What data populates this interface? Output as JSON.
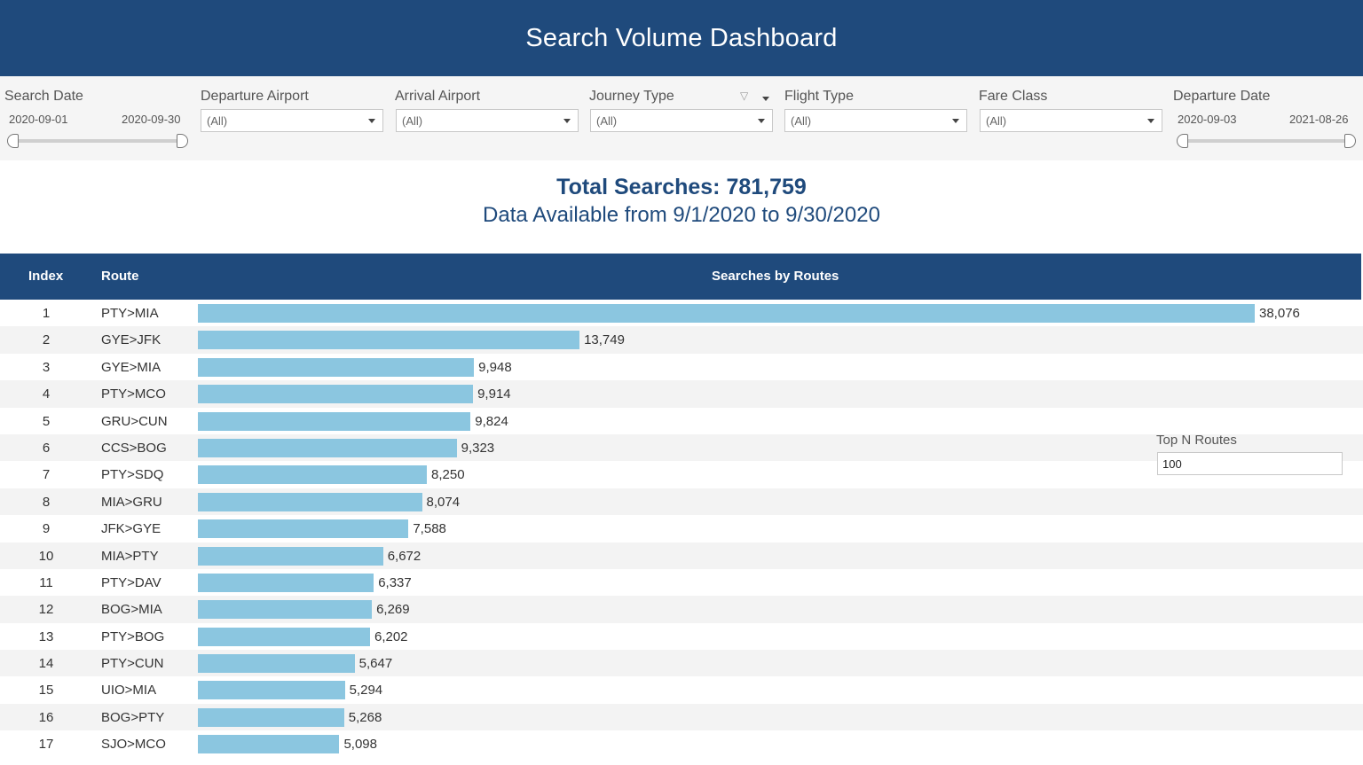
{
  "header": {
    "title": "Search Volume Dashboard"
  },
  "filters": {
    "search_date": {
      "label": "Search Date",
      "start": "2020-09-01",
      "end": "2020-09-30"
    },
    "departure_airport": {
      "label": "Departure Airport",
      "value": "(All)"
    },
    "arrival_airport": {
      "label": "Arrival Airport",
      "value": "(All)"
    },
    "journey_type": {
      "label": "Journey Type",
      "value": "(All)"
    },
    "flight_type": {
      "label": "Flight Type",
      "value": "(All)"
    },
    "fare_class": {
      "label": "Fare Class",
      "value": "(All)"
    },
    "departure_date": {
      "label": "Departure Date",
      "start": "2020-09-03",
      "end": "2021-08-26"
    }
  },
  "summary": {
    "total": "Total Searches: 781,759",
    "available": "Data Available from 9/1/2020 to 9/30/2020"
  },
  "table": {
    "col_index": "Index",
    "col_route": "Route",
    "col_chart": "Searches by Routes"
  },
  "top_n": {
    "label": "Top N Routes",
    "value": "100"
  },
  "colors": {
    "header_bg": "#1f4a7c",
    "bar": "#8bc6e0"
  },
  "chart_data": {
    "type": "bar",
    "orientation": "horizontal",
    "title": "Searches by Routes",
    "max_value": 38076,
    "rows": [
      {
        "index": "1",
        "route": "PTY>MIA",
        "value": 38076,
        "label": "38,076"
      },
      {
        "index": "2",
        "route": "GYE>JFK",
        "value": 13749,
        "label": "13,749"
      },
      {
        "index": "3",
        "route": "GYE>MIA",
        "value": 9948,
        "label": "9,948"
      },
      {
        "index": "4",
        "route": "PTY>MCO",
        "value": 9914,
        "label": "9,914"
      },
      {
        "index": "5",
        "route": "GRU>CUN",
        "value": 9824,
        "label": "9,824"
      },
      {
        "index": "6",
        "route": "CCS>BOG",
        "value": 9323,
        "label": "9,323"
      },
      {
        "index": "7",
        "route": "PTY>SDQ",
        "value": 8250,
        "label": "8,250"
      },
      {
        "index": "8",
        "route": "MIA>GRU",
        "value": 8074,
        "label": "8,074"
      },
      {
        "index": "9",
        "route": "JFK>GYE",
        "value": 7588,
        "label": "7,588"
      },
      {
        "index": "10",
        "route": "MIA>PTY",
        "value": 6672,
        "label": "6,672"
      },
      {
        "index": "11",
        "route": "PTY>DAV",
        "value": 6337,
        "label": "6,337"
      },
      {
        "index": "12",
        "route": "BOG>MIA",
        "value": 6269,
        "label": "6,269"
      },
      {
        "index": "13",
        "route": "PTY>BOG",
        "value": 6202,
        "label": "6,202"
      },
      {
        "index": "14",
        "route": "PTY>CUN",
        "value": 5647,
        "label": "5,647"
      },
      {
        "index": "15",
        "route": "UIO>MIA",
        "value": 5294,
        "label": "5,294"
      },
      {
        "index": "16",
        "route": "BOG>PTY",
        "value": 5268,
        "label": "5,268"
      },
      {
        "index": "17",
        "route": "SJO>MCO",
        "value": 5098,
        "label": "5,098"
      }
    ]
  }
}
